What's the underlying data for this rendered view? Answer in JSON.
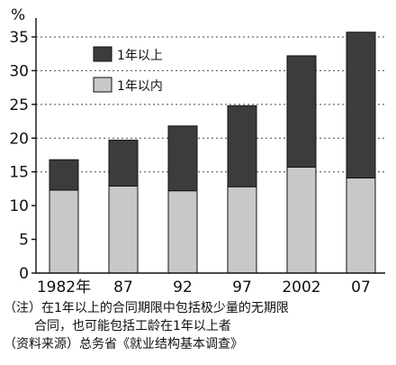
{
  "chart_data": {
    "type": "bar",
    "stacked": true,
    "categories": [
      "1982年",
      "87",
      "92",
      "97",
      "2002",
      "07"
    ],
    "series": [
      {
        "name": "1年以内",
        "values": [
          12.3,
          12.9,
          12.2,
          12.8,
          15.7,
          14.1
        ],
        "color": "#c8c8c8"
      },
      {
        "name": "1年以上",
        "values": [
          4.5,
          6.8,
          9.6,
          12.0,
          16.5,
          21.6
        ],
        "color": "#3c3c3c"
      }
    ],
    "ylabel": "%",
    "ylim": [
      0,
      37
    ],
    "yticks": [
      0,
      5,
      10,
      15,
      20,
      25,
      30,
      35
    ],
    "gridlines": [
      15,
      20,
      25,
      30,
      35
    ],
    "legend": [
      "1年以上",
      "1年以内"
    ],
    "legend_position": "top-left"
  },
  "notes": {
    "line1": "（注）在1年以上的合同期限中包括极少量的无期限",
    "line2": "合同，也可能包括工龄在1年以上者",
    "line3": "（资料来源）总务省《就业结构基本调查》"
  }
}
